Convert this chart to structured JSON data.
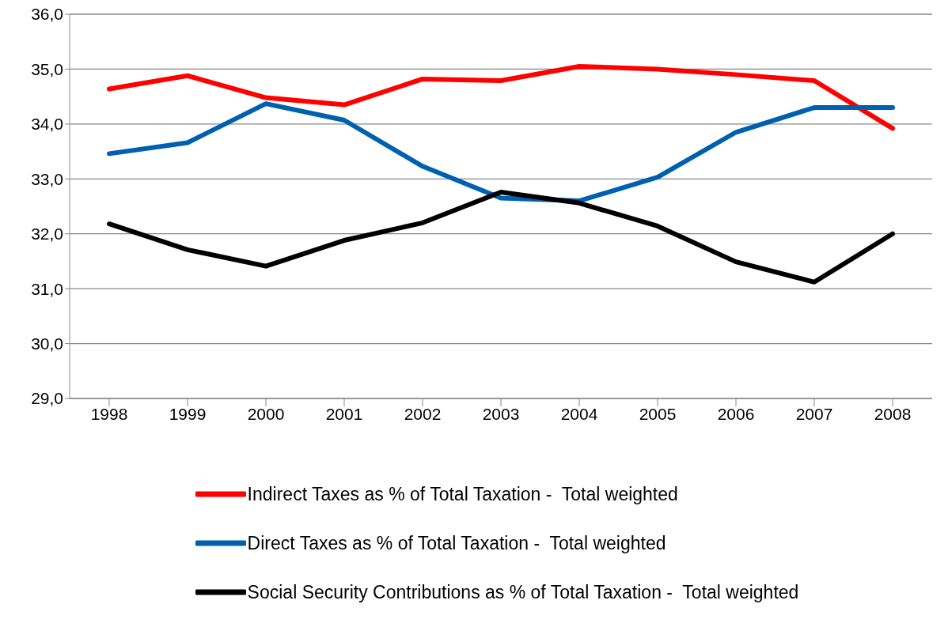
{
  "chart_data": {
    "type": "line",
    "categories": [
      "1998",
      "1999",
      "2000",
      "2001",
      "2002",
      "2003",
      "2004",
      "2005",
      "2006",
      "2007",
      "2008"
    ],
    "series": [
      {
        "name": "Indirect Taxes as % of Total Taxation -  Total weighted",
        "color": "#ff0000",
        "values": [
          34.64,
          34.88,
          34.48,
          34.35,
          34.82,
          34.79,
          35.05,
          35.0,
          34.9,
          34.79,
          33.92
        ]
      },
      {
        "name": "Direct Taxes as % of Total Taxation -  Total weighted",
        "color": "#0060b0",
        "values": [
          33.46,
          33.66,
          34.37,
          34.07,
          33.23,
          32.65,
          32.6,
          33.03,
          33.85,
          34.3,
          34.3
        ]
      },
      {
        "name": "Social Security Contributions as % of Total Taxation -  Total weighted",
        "color": "#000000",
        "values": [
          32.18,
          31.71,
          31.41,
          31.88,
          32.2,
          32.76,
          32.56,
          32.14,
          31.49,
          31.12,
          32.0
        ]
      }
    ],
    "ylim": [
      29,
      36
    ],
    "yticks": [
      {
        "value": 29,
        "label": "29,0"
      },
      {
        "value": 30,
        "label": "30,0"
      },
      {
        "value": 31,
        "label": "31,0"
      },
      {
        "value": 32,
        "label": "32,0"
      },
      {
        "value": 33,
        "label": "33,0"
      },
      {
        "value": 34,
        "label": "34,0"
      },
      {
        "value": 35,
        "label": "35,0"
      },
      {
        "value": 36,
        "label": "36,0"
      }
    ],
    "grid": "y",
    "legend": "bottom",
    "marker": "none",
    "line_style": "solid"
  }
}
